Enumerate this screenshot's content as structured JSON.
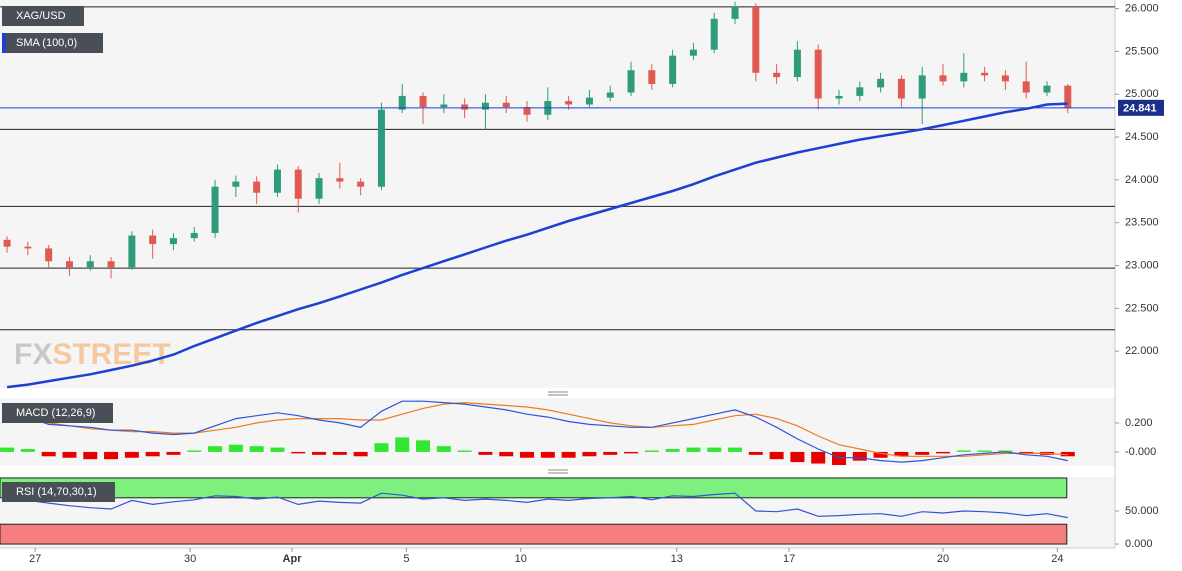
{
  "chart_data": {
    "type": "candlestick",
    "symbol": "XAG/USD",
    "indicator_label": "SMA (100,0)",
    "watermark": [
      "FX",
      "STREET"
    ],
    "xlim": [
      -0.34,
      53.27
    ],
    "xticks": [
      {
        "value": 1.35,
        "label": "27"
      },
      {
        "value": 8.8,
        "label": "30"
      },
      {
        "value": 13.7,
        "label": "Apr"
      },
      {
        "value": 19.2,
        "label": "5"
      },
      {
        "value": 24.7,
        "label": "10"
      },
      {
        "value": 32.2,
        "label": "13"
      },
      {
        "value": 37.6,
        "label": "17"
      },
      {
        "value": 45.0,
        "label": "20"
      },
      {
        "value": 50.5,
        "label": "24"
      }
    ],
    "ylim": [
      21.57,
      26.1
    ],
    "yticks": [
      {
        "value": 22,
        "label": "22.000"
      },
      {
        "value": 22.5,
        "label": "22.500"
      },
      {
        "value": 23,
        "label": "23.000"
      },
      {
        "value": 23.5,
        "label": "23.500"
      },
      {
        "value": 24,
        "label": "24.000"
      },
      {
        "value": 24.5,
        "label": "24.500"
      },
      {
        "value": 25,
        "label": "25.000"
      },
      {
        "value": 25.5,
        "label": "25.500"
      },
      {
        "value": 26,
        "label": "26.000"
      }
    ],
    "up_color": "#2e9c7c",
    "down_color": "#e05a52",
    "open": [
      23.3,
      23.22,
      23.2,
      23.05,
      22.98,
      23.05,
      22.98,
      23.35,
      23.25,
      23.32,
      23.38,
      23.92,
      23.98,
      23.85,
      24.12,
      23.78,
      24.02,
      23.98,
      23.92,
      24.82,
      24.98,
      24.85,
      24.88,
      24.82,
      24.9,
      24.85,
      24.76,
      24.92,
      24.88,
      24.96,
      25.02,
      25.28,
      25.12,
      25.45,
      25.52,
      25.88,
      26.02,
      25.25,
      25.2,
      25.52,
      24.95,
      24.98,
      25.08,
      25.18,
      24.95,
      25.22,
      25.15,
      25.25,
      25.22,
      25.15,
      25.02,
      25.1
    ],
    "high": [
      23.34,
      23.28,
      23.24,
      23.1,
      23.12,
      23.1,
      23.4,
      23.42,
      23.38,
      23.45,
      24.0,
      24.05,
      24.04,
      24.18,
      24.16,
      24.08,
      24.2,
      24.02,
      24.9,
      25.12,
      25.02,
      25.0,
      24.95,
      25.0,
      24.98,
      24.92,
      25.08,
      24.98,
      25.05,
      25.1,
      25.38,
      25.35,
      25.52,
      25.6,
      25.95,
      26.08,
      26.06,
      25.35,
      25.62,
      25.58,
      25.05,
      25.15,
      25.25,
      25.22,
      25.32,
      25.35,
      25.48,
      25.32,
      25.28,
      25.38,
      25.15,
      25.12
    ],
    "low": [
      23.15,
      23.12,
      22.98,
      22.88,
      22.94,
      22.85,
      22.95,
      23.08,
      23.18,
      23.28,
      23.32,
      23.8,
      23.72,
      23.8,
      23.62,
      23.72,
      23.9,
      23.82,
      23.88,
      24.78,
      24.65,
      24.78,
      24.72,
      24.58,
      24.78,
      24.68,
      24.7,
      24.82,
      24.85,
      24.92,
      24.98,
      25.05,
      25.08,
      25.4,
      25.48,
      25.82,
      25.15,
      25.12,
      25.15,
      24.82,
      24.88,
      24.92,
      25.02,
      24.85,
      24.65,
      25.1,
      25.08,
      25.15,
      25.05,
      24.95,
      24.98,
      24.78
    ],
    "close": [
      23.22,
      23.2,
      23.05,
      22.98,
      23.05,
      22.98,
      23.35,
      23.25,
      23.32,
      23.38,
      23.92,
      23.98,
      23.85,
      24.12,
      23.78,
      24.02,
      23.98,
      23.92,
      24.82,
      24.98,
      24.85,
      24.88,
      24.82,
      24.9,
      24.85,
      24.76,
      24.92,
      24.88,
      24.96,
      25.02,
      25.28,
      25.12,
      25.45,
      25.52,
      25.88,
      26.02,
      25.25,
      25.2,
      25.52,
      24.95,
      24.98,
      25.08,
      25.18,
      24.95,
      25.22,
      25.15,
      25.25,
      25.22,
      25.15,
      25.02,
      25.1,
      24.84
    ],
    "sma": {
      "color": "#1c3fd4",
      "values": [
        21.58,
        21.61,
        21.65,
        21.69,
        21.73,
        21.78,
        21.83,
        21.89,
        21.96,
        22.06,
        22.15,
        22.24,
        22.33,
        22.41,
        22.49,
        22.56,
        22.64,
        22.72,
        22.8,
        22.89,
        22.97,
        23.05,
        23.13,
        23.21,
        23.29,
        23.36,
        23.44,
        23.52,
        23.59,
        23.66,
        23.73,
        23.8,
        23.87,
        23.95,
        24.04,
        24.12,
        24.2,
        24.26,
        24.32,
        24.37,
        24.42,
        24.47,
        24.51,
        24.55,
        24.59,
        24.64,
        24.69,
        24.74,
        24.79,
        24.83,
        24.88,
        24.89
      ]
    },
    "levels": [
      26.02,
      24.59,
      23.69,
      22.97,
      22.25
    ],
    "last_price": 24.841,
    "macd": {
      "label": "MACD (12,26,9)",
      "ylim": [
        -0.097,
        0.372
      ],
      "yticks": [
        {
          "value": 0.2,
          "label": "0.200"
        },
        {
          "value": 0,
          "label": "-0.000"
        }
      ],
      "macd_color": "#3054d8",
      "signal_color": "#f07a20",
      "up_color": "#33e633",
      "down_color": "#e60000",
      "macd": [
        0.28,
        0.24,
        0.19,
        0.18,
        0.17,
        0.15,
        0.15,
        0.13,
        0.12,
        0.13,
        0.18,
        0.23,
        0.25,
        0.27,
        0.25,
        0.22,
        0.2,
        0.17,
        0.28,
        0.35,
        0.35,
        0.34,
        0.33,
        0.31,
        0.29,
        0.26,
        0.24,
        0.21,
        0.19,
        0.18,
        0.17,
        0.17,
        0.2,
        0.23,
        0.26,
        0.29,
        0.24,
        0.17,
        0.09,
        0.02,
        -0.04,
        -0.04,
        -0.06,
        -0.07,
        -0.06,
        -0.04,
        -0.02,
        -0.01,
        0.0,
        -0.02,
        -0.03,
        -0.06
      ],
      "signal": [
        0.25,
        0.22,
        0.2,
        0.18,
        0.16,
        0.15,
        0.14,
        0.14,
        0.13,
        0.13,
        0.15,
        0.17,
        0.2,
        0.22,
        0.23,
        0.23,
        0.23,
        0.22,
        0.22,
        0.26,
        0.3,
        0.33,
        0.34,
        0.33,
        0.32,
        0.31,
        0.29,
        0.26,
        0.23,
        0.2,
        0.18,
        0.17,
        0.18,
        0.19,
        0.22,
        0.25,
        0.26,
        0.23,
        0.18,
        0.11,
        0.05,
        0.02,
        -0.01,
        -0.03,
        -0.03,
        -0.03,
        -0.03,
        -0.02,
        -0.01,
        -0.01,
        -0.01,
        -0.02
      ],
      "histogram": [
        0.03,
        0.02,
        -0.03,
        -0.04,
        -0.05,
        -0.05,
        -0.04,
        -0.03,
        -0.02,
        0.01,
        0.04,
        0.05,
        0.04,
        0.03,
        -0.01,
        -0.02,
        -0.02,
        -0.03,
        0.06,
        0.1,
        0.08,
        0.04,
        0.01,
        -0.02,
        -0.03,
        -0.04,
        -0.04,
        -0.04,
        -0.03,
        -0.02,
        -0.01,
        0.01,
        0.02,
        0.03,
        0.03,
        0.03,
        -0.02,
        -0.05,
        -0.07,
        -0.08,
        -0.09,
        -0.06,
        -0.04,
        -0.03,
        -0.02,
        -0.01,
        0.01,
        0.01,
        0.01,
        -0.01,
        -0.02,
        -0.03
      ]
    },
    "rsi": {
      "label": "RSI (14,70,30,1)",
      "ylim": [
        -6,
        101.5
      ],
      "yticks": [
        {
          "value": 50,
          "label": "50.000"
        },
        {
          "value": 0,
          "label": "0.000"
        }
      ],
      "overbought": [
        70,
        100
      ],
      "oversold": [
        0,
        30
      ],
      "color": "#3054d8",
      "values": [
        68,
        66,
        62,
        58,
        55,
        53,
        66,
        60,
        64,
        67,
        73,
        72,
        68,
        71,
        60,
        65,
        63,
        62,
        77,
        74,
        68,
        70,
        66,
        68,
        66,
        63,
        68,
        66,
        69,
        70,
        72,
        67,
        73,
        72,
        75,
        77,
        50,
        49,
        53,
        42,
        43,
        45,
        46,
        42,
        49,
        47,
        50,
        49,
        47,
        43,
        46,
        40
      ]
    }
  }
}
